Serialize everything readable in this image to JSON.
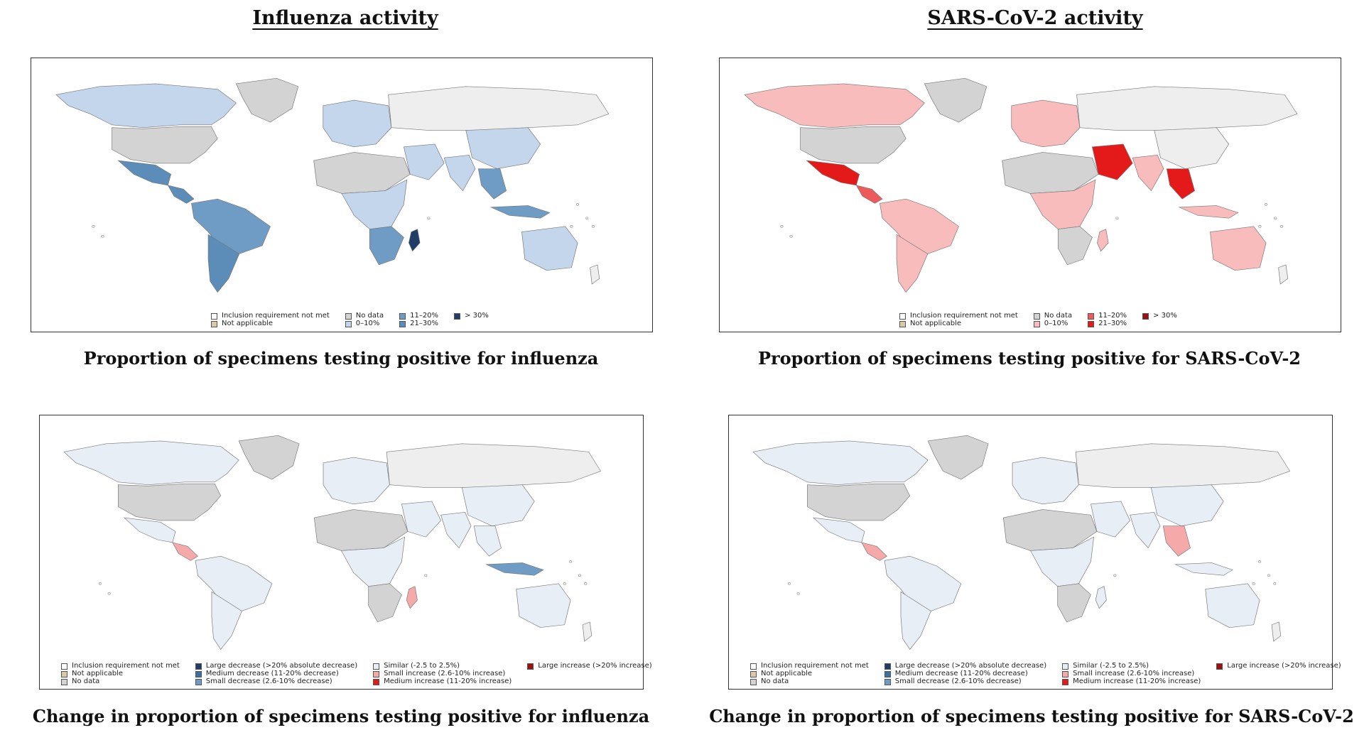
{
  "headings": {
    "influenza": "Influenza activity",
    "sars": "SARS-CoV-2 activity"
  },
  "captions": {
    "flu_proportion": "Proportion of specimens testing positive for influenza",
    "sars_proportion": "Proportion of specimens testing positive for SARS-CoV-2",
    "flu_change": "Change in proportion of specimens testing positive for influenza",
    "sars_change": "Change in proportion of specimens testing positive for SARS-CoV-2"
  },
  "legends": {
    "flu_proportion": [
      [
        {
          "label": "Inclusion requirement not met",
          "color": "#ffffff"
        },
        {
          "label": "Not applicable",
          "color": "#d9c9a8"
        }
      ],
      [
        {
          "label": "No data",
          "color": "#d3d3d3"
        },
        {
          "label": "0–10%",
          "color": "#c3d6ec"
        }
      ],
      [
        {
          "label": "11–20%",
          "color": "#6e9cc4"
        },
        {
          "label": "21–30%",
          "color": "#5b8db8"
        }
      ],
      [
        {
          "label": "> 30%",
          "color": "#1f3d66"
        }
      ]
    ],
    "sars_proportion": [
      [
        {
          "label": "Inclusion requirement not met",
          "color": "#ffffff"
        },
        {
          "label": "Not applicable",
          "color": "#d9c9a8"
        }
      ],
      [
        {
          "label": "No data",
          "color": "#d3d3d3"
        },
        {
          "label": "0–10%",
          "color": "#f8bcbc"
        }
      ],
      [
        {
          "label": "11–20%",
          "color": "#ee5a5a"
        },
        {
          "label": "21–30%",
          "color": "#e41a1a"
        }
      ],
      [
        {
          "label": "> 30%",
          "color": "#9e0f0f"
        }
      ]
    ],
    "flu_change": [
      [
        {
          "label": "Inclusion requirement not met",
          "color": "#ffffff"
        },
        {
          "label": "Not applicable",
          "color": "#d9c9a8"
        },
        {
          "label": "No data",
          "color": "#d3d3d3"
        }
      ],
      [
        {
          "label": "Large decrease (>20% absolute decrease)",
          "color": "#1f3d66"
        },
        {
          "label": "Medium decrease (11-20% decrease)",
          "color": "#3f6f9c"
        },
        {
          "label": "Small decrease (2.6-10% decrease)",
          "color": "#6e9cc4"
        }
      ],
      [
        {
          "label": "Similar (-2.5 to 2.5%)",
          "color": "#e8eef6"
        },
        {
          "label": "Small increase (2.6-10% increase)",
          "color": "#f5a9a9"
        },
        {
          "label": "Medium increase (11-20% increase)",
          "color": "#e41a1a"
        }
      ],
      [
        {
          "label": "Large increase (>20% increase)",
          "color": "#9e0f0f"
        }
      ]
    ],
    "sars_change": [
      [
        {
          "label": "Inclusion requirement not met",
          "color": "#ffffff"
        },
        {
          "label": "Not applicable",
          "color": "#d9c9a8"
        },
        {
          "label": "No data",
          "color": "#d3d3d3"
        }
      ],
      [
        {
          "label": "Large decrease (>20% absolute decrease)",
          "color": "#1f3d66"
        },
        {
          "label": "Medium decrease (11-20% decrease)",
          "color": "#3f6f9c"
        },
        {
          "label": "Small decrease (2.6-10% decrease)",
          "color": "#6e9cc4"
        }
      ],
      [
        {
          "label": "Similar (-2.5 to 2.5%)",
          "color": "#e8eef6"
        },
        {
          "label": "Small increase (2.6-10% increase)",
          "color": "#f5a9a9"
        },
        {
          "label": "Medium increase (11-20% increase)",
          "color": "#e41a1a"
        }
      ],
      [
        {
          "label": "Large increase (>20% increase)",
          "color": "#9e0f0f"
        }
      ]
    ]
  },
  "map_colors": {
    "flu_proportion": {
      "north_america": "#c3d6ec",
      "usa": "#d3d3d3",
      "greenland": "#d3d3d3",
      "mexico": "#5b8db8",
      "central_america": "#5b8db8",
      "south_america": "#6e9cc4",
      "southern_cone": "#5b8db8",
      "europe": "#c3d6ec",
      "russia": "#eeeeee",
      "africa_north": "#d3d3d3",
      "africa_central": "#c3d6ec",
      "africa_south": "#6e9cc4",
      "madagascar": "#1f3d66",
      "middle_east": "#c3d6ec",
      "india": "#c3d6ec",
      "china": "#c3d6ec",
      "southeast_asia": "#6e9cc4",
      "indonesia": "#6e9cc4",
      "australia": "#c3d6ec",
      "new_zealand": "#eeeeee"
    },
    "sars_proportion": {
      "north_america": "#f8bcbc",
      "usa": "#d3d3d3",
      "greenland": "#d3d3d3",
      "mexico": "#e41a1a",
      "central_america": "#ee5a5a",
      "south_america": "#f8bcbc",
      "southern_cone": "#f8bcbc",
      "europe": "#f8bcbc",
      "russia": "#eeeeee",
      "africa_north": "#d3d3d3",
      "africa_central": "#f8bcbc",
      "africa_south": "#d3d3d3",
      "madagascar": "#f8bcbc",
      "middle_east": "#e41a1a",
      "india": "#f8bcbc",
      "china": "#eeeeee",
      "southeast_asia": "#e41a1a",
      "indonesia": "#f8bcbc",
      "australia": "#f8bcbc",
      "new_zealand": "#eeeeee"
    },
    "flu_change": {
      "north_america": "#e8eef6",
      "usa": "#d3d3d3",
      "greenland": "#d3d3d3",
      "mexico": "#e8eef6",
      "central_america": "#f5a9a9",
      "south_america": "#e8eef6",
      "southern_cone": "#e8eef6",
      "europe": "#e8eef6",
      "russia": "#eeeeee",
      "africa_north": "#d3d3d3",
      "africa_central": "#e8eef6",
      "africa_south": "#d3d3d3",
      "madagascar": "#f5a9a9",
      "middle_east": "#e8eef6",
      "india": "#e8eef6",
      "china": "#e8eef6",
      "southeast_asia": "#e8eef6",
      "indonesia": "#6e9cc4",
      "australia": "#e8eef6",
      "new_zealand": "#eeeeee"
    },
    "sars_change": {
      "north_america": "#e8eef6",
      "usa": "#d3d3d3",
      "greenland": "#d3d3d3",
      "mexico": "#e8eef6",
      "central_america": "#f5a9a9",
      "south_america": "#e8eef6",
      "southern_cone": "#e8eef6",
      "europe": "#e8eef6",
      "russia": "#eeeeee",
      "africa_north": "#d3d3d3",
      "africa_central": "#e8eef6",
      "africa_south": "#d3d3d3",
      "madagascar": "#e8eef6",
      "middle_east": "#e8eef6",
      "india": "#e8eef6",
      "china": "#e8eef6",
      "southeast_asia": "#f5a9a9",
      "indonesia": "#e8eef6",
      "australia": "#e8eef6",
      "new_zealand": "#eeeeee"
    }
  }
}
